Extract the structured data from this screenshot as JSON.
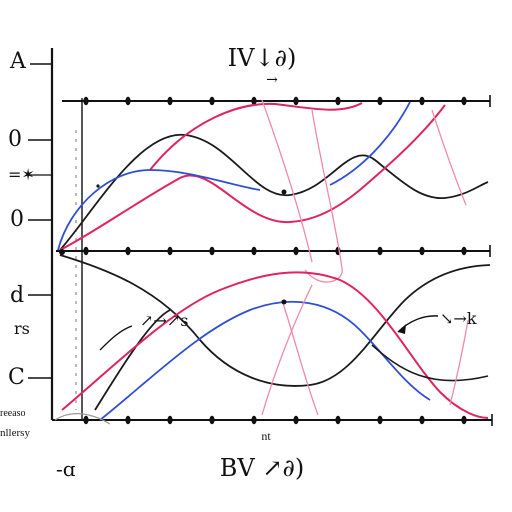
{
  "labels": {
    "top_title": "IV↓∂)",
    "bottom_title": "BV ↗∂)",
    "bottom_left": "-ɑ",
    "top_left_marker": "Α",
    "left_mark_1": "0",
    "left_mark_2": "=✶",
    "left_mark_3": "0",
    "left_mark_4": "d",
    "left_mark_5": "rs",
    "left_mark_6": "C",
    "left_small_1": "reeaso",
    "left_small_2": "nllersy",
    "bottom_tick_note": "nt",
    "annotation_mid": "↗→↗s",
    "annotation_right": "↘→k",
    "annotation_top_arrow": "→"
  },
  "colors": {
    "axis": "#111111",
    "black_curve": "#1a1a1a",
    "red_curve": "#e0245e",
    "blue_curve": "#2f4ed6",
    "pink_curve": "#f08aa8"
  }
}
